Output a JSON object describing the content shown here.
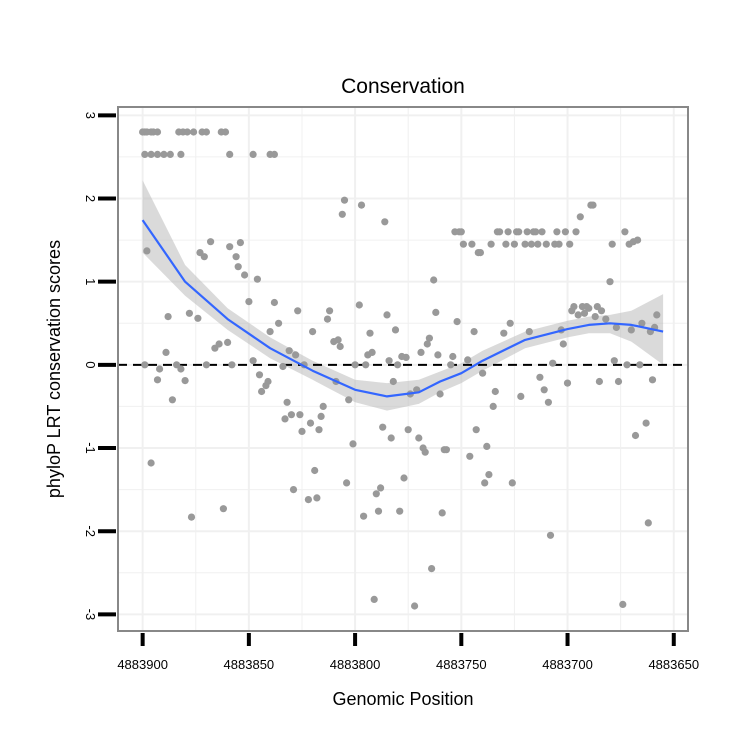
{
  "chart_data": {
    "type": "scatter",
    "title": "Conservation",
    "xlabel": "Genomic Position",
    "ylabel": "phyloP LRT conservation scores",
    "x_reversed": true,
    "xlim": [
      4883911.6,
      4883643.3
    ],
    "ylim": [
      -3.2,
      3.1
    ],
    "x_ticks": [
      4883900,
      4883850,
      4883800,
      4883750,
      4883700,
      4883650
    ],
    "x_tick_labels": [
      "4883900",
      "4883850",
      "4883800",
      "4883750",
      "4883700",
      "4883650"
    ],
    "y_ticks": [
      -3,
      -2,
      -1,
      0,
      1,
      2,
      3
    ],
    "y_tick_labels": [
      "-3",
      "-2",
      "-1",
      "0",
      "1",
      "2",
      "3"
    ],
    "reference_line": {
      "y": 0,
      "style": "dashed"
    },
    "grid": true,
    "colors": {
      "points": "#999999",
      "smooth_line": "#3366ff",
      "ribbon": "#bbbbbb",
      "panel_border": "#888888",
      "grid": "#f0f0f0"
    },
    "points": [
      {
        "x": 4883900,
        "y": 2.8
      },
      {
        "x": 4883899,
        "y": 2.8
      },
      {
        "x": 4883898,
        "y": 2.8
      },
      {
        "x": 4883896,
        "y": 2.8
      },
      {
        "x": 4883895,
        "y": 2.8
      },
      {
        "x": 4883893,
        "y": 2.8
      },
      {
        "x": 4883899,
        "y": 2.53
      },
      {
        "x": 4883896,
        "y": 2.53
      },
      {
        "x": 4883893,
        "y": 2.53
      },
      {
        "x": 4883890,
        "y": 2.53
      },
      {
        "x": 4883887,
        "y": 2.53
      },
      {
        "x": 4883882,
        "y": 2.53
      },
      {
        "x": 4883883,
        "y": 2.8
      },
      {
        "x": 4883881,
        "y": 2.8
      },
      {
        "x": 4883879,
        "y": 2.8
      },
      {
        "x": 4883876,
        "y": 2.8
      },
      {
        "x": 4883872,
        "y": 2.8
      },
      {
        "x": 4883870,
        "y": 2.8
      },
      {
        "x": 4883863,
        "y": 2.8
      },
      {
        "x": 4883861,
        "y": 2.8
      },
      {
        "x": 4883859,
        "y": 2.53
      },
      {
        "x": 4883848,
        "y": 2.53
      },
      {
        "x": 4883840,
        "y": 2.53
      },
      {
        "x": 4883838,
        "y": 2.53
      },
      {
        "x": 4883898,
        "y": 1.37
      },
      {
        "x": 4883899,
        "y": 0.0
      },
      {
        "x": 4883896,
        "y": -1.18
      },
      {
        "x": 4883893,
        "y": -0.18
      },
      {
        "x": 4883892,
        "y": -0.05
      },
      {
        "x": 4883889,
        "y": 0.15
      },
      {
        "x": 4883888,
        "y": 0.58
      },
      {
        "x": 4883886,
        "y": -0.42
      },
      {
        "x": 4883884,
        "y": 0.0
      },
      {
        "x": 4883882,
        "y": -0.05
      },
      {
        "x": 4883880,
        "y": -0.19
      },
      {
        "x": 4883878,
        "y": 0.62
      },
      {
        "x": 4883877,
        "y": -1.83
      },
      {
        "x": 4883874,
        "y": 0.56
      },
      {
        "x": 4883873,
        "y": 1.35
      },
      {
        "x": 4883871,
        "y": 1.3
      },
      {
        "x": 4883870,
        "y": 0.0
      },
      {
        "x": 4883868,
        "y": 1.48
      },
      {
        "x": 4883866,
        "y": 0.2
      },
      {
        "x": 4883864,
        "y": 0.25
      },
      {
        "x": 4883862,
        "y": -1.73
      },
      {
        "x": 4883860,
        "y": 0.27
      },
      {
        "x": 4883859,
        "y": 1.42
      },
      {
        "x": 4883858,
        "y": 0.0
      },
      {
        "x": 4883856,
        "y": 1.3
      },
      {
        "x": 4883855,
        "y": 1.18
      },
      {
        "x": 4883854,
        "y": 1.47
      },
      {
        "x": 4883852,
        "y": 1.08
      },
      {
        "x": 4883850,
        "y": 0.76
      },
      {
        "x": 4883848,
        "y": 0.05
      },
      {
        "x": 4883846,
        "y": 1.03
      },
      {
        "x": 4883845,
        "y": -0.12
      },
      {
        "x": 4883844,
        "y": -0.32
      },
      {
        "x": 4883842,
        "y": -0.25
      },
      {
        "x": 4883841,
        "y": -0.2
      },
      {
        "x": 4883840,
        "y": 0.4
      },
      {
        "x": 4883838,
        "y": 0.75
      },
      {
        "x": 4883836,
        "y": 0.5
      },
      {
        "x": 4883834,
        "y": -0.02
      },
      {
        "x": 4883833,
        "y": -0.65
      },
      {
        "x": 4883832,
        "y": -0.45
      },
      {
        "x": 4883831,
        "y": 0.17
      },
      {
        "x": 4883830,
        "y": -0.6
      },
      {
        "x": 4883829,
        "y": -1.5
      },
      {
        "x": 4883828,
        "y": 0.12
      },
      {
        "x": 4883827,
        "y": 0.65
      },
      {
        "x": 4883826,
        "y": -0.6
      },
      {
        "x": 4883825,
        "y": -0.8
      },
      {
        "x": 4883824,
        "y": 0.0
      },
      {
        "x": 4883822,
        "y": -1.62
      },
      {
        "x": 4883821,
        "y": -0.7
      },
      {
        "x": 4883820,
        "y": 0.4
      },
      {
        "x": 4883819,
        "y": -1.27
      },
      {
        "x": 4883818,
        "y": -1.6
      },
      {
        "x": 4883817,
        "y": -0.78
      },
      {
        "x": 4883816,
        "y": -0.62
      },
      {
        "x": 4883815,
        "y": -0.5
      },
      {
        "x": 4883813,
        "y": 0.55
      },
      {
        "x": 4883812,
        "y": 0.65
      },
      {
        "x": 4883810,
        "y": 0.28
      },
      {
        "x": 4883809,
        "y": -0.2
      },
      {
        "x": 4883808,
        "y": 0.3
      },
      {
        "x": 4883807,
        "y": 0.22
      },
      {
        "x": 4883806,
        "y": 1.81
      },
      {
        "x": 4883805,
        "y": 1.98
      },
      {
        "x": 4883804,
        "y": -1.42
      },
      {
        "x": 4883803,
        "y": -0.42
      },
      {
        "x": 4883801,
        "y": -0.95
      },
      {
        "x": 4883800,
        "y": 0.0
      },
      {
        "x": 4883798,
        "y": 0.72
      },
      {
        "x": 4883797,
        "y": 1.92
      },
      {
        "x": 4883796,
        "y": -1.82
      },
      {
        "x": 4883795,
        "y": 0.0
      },
      {
        "x": 4883794,
        "y": 0.12
      },
      {
        "x": 4883793,
        "y": 0.38
      },
      {
        "x": 4883792,
        "y": 0.15
      },
      {
        "x": 4883791,
        "y": -2.82
      },
      {
        "x": 4883790,
        "y": -1.55
      },
      {
        "x": 4883789,
        "y": -1.76
      },
      {
        "x": 4883788,
        "y": -1.48
      },
      {
        "x": 4883787,
        "y": -0.75
      },
      {
        "x": 4883786,
        "y": 1.72
      },
      {
        "x": 4883785,
        "y": 0.6
      },
      {
        "x": 4883784,
        "y": 0.05
      },
      {
        "x": 4883783,
        "y": -0.88
      },
      {
        "x": 4883782,
        "y": -0.2
      },
      {
        "x": 4883781,
        "y": 0.42
      },
      {
        "x": 4883780,
        "y": 0.0
      },
      {
        "x": 4883779,
        "y": -1.76
      },
      {
        "x": 4883778,
        "y": 0.1
      },
      {
        "x": 4883777,
        "y": -1.36
      },
      {
        "x": 4883776,
        "y": 0.09
      },
      {
        "x": 4883775,
        "y": -0.78
      },
      {
        "x": 4883774,
        "y": -0.35
      },
      {
        "x": 4883772,
        "y": -2.9
      },
      {
        "x": 4883771,
        "y": -0.3
      },
      {
        "x": 4883770,
        "y": -0.88
      },
      {
        "x": 4883769,
        "y": 0.15
      },
      {
        "x": 4883768,
        "y": -1.0
      },
      {
        "x": 4883767,
        "y": -1.05
      },
      {
        "x": 4883766,
        "y": 0.25
      },
      {
        "x": 4883765,
        "y": 0.32
      },
      {
        "x": 4883764,
        "y": -2.45
      },
      {
        "x": 4883763,
        "y": 1.02
      },
      {
        "x": 4883762,
        "y": 0.63
      },
      {
        "x": 4883761,
        "y": 0.12
      },
      {
        "x": 4883760,
        "y": -0.35
      },
      {
        "x": 4883759,
        "y": -1.78
      },
      {
        "x": 4883758,
        "y": -1.02
      },
      {
        "x": 4883757,
        "y": -1.02
      },
      {
        "x": 4883755,
        "y": 0.0
      },
      {
        "x": 4883754,
        "y": 0.1
      },
      {
        "x": 4883753,
        "y": 1.6
      },
      {
        "x": 4883752,
        "y": 0.52
      },
      {
        "x": 4883751,
        "y": 1.6
      },
      {
        "x": 4883750,
        "y": 1.6
      },
      {
        "x": 4883749,
        "y": 1.45
      },
      {
        "x": 4883747,
        "y": 0.06
      },
      {
        "x": 4883746,
        "y": -1.1
      },
      {
        "x": 4883745,
        "y": 1.45
      },
      {
        "x": 4883744,
        "y": 0.4
      },
      {
        "x": 4883743,
        "y": -0.78
      },
      {
        "x": 4883742,
        "y": 1.35
      },
      {
        "x": 4883741,
        "y": 1.35
      },
      {
        "x": 4883740,
        "y": -0.1
      },
      {
        "x": 4883739,
        "y": -1.42
      },
      {
        "x": 4883738,
        "y": -0.98
      },
      {
        "x": 4883737,
        "y": -1.32
      },
      {
        "x": 4883736,
        "y": 1.45
      },
      {
        "x": 4883735,
        "y": -0.5
      },
      {
        "x": 4883734,
        "y": -0.32
      },
      {
        "x": 4883733,
        "y": 1.6
      },
      {
        "x": 4883732,
        "y": 1.6
      },
      {
        "x": 4883730,
        "y": 0.38
      },
      {
        "x": 4883729,
        "y": 1.45
      },
      {
        "x": 4883728,
        "y": 1.6
      },
      {
        "x": 4883727,
        "y": 0.5
      },
      {
        "x": 4883726,
        "y": -1.42
      },
      {
        "x": 4883725,
        "y": 1.45
      },
      {
        "x": 4883724,
        "y": 1.6
      },
      {
        "x": 4883723,
        "y": 1.6
      },
      {
        "x": 4883722,
        "y": -0.38
      },
      {
        "x": 4883720,
        "y": 1.45
      },
      {
        "x": 4883719,
        "y": 1.6
      },
      {
        "x": 4883718,
        "y": 0.4
      },
      {
        "x": 4883717,
        "y": 1.45
      },
      {
        "x": 4883716,
        "y": 1.6
      },
      {
        "x": 4883715,
        "y": 1.6
      },
      {
        "x": 4883714,
        "y": 1.45
      },
      {
        "x": 4883713,
        "y": -0.15
      },
      {
        "x": 4883712,
        "y": 1.6
      },
      {
        "x": 4883711,
        "y": -0.3
      },
      {
        "x": 4883710,
        "y": 1.45
      },
      {
        "x": 4883709,
        "y": -0.45
      },
      {
        "x": 4883708,
        "y": -2.05
      },
      {
        "x": 4883707,
        "y": 0.02
      },
      {
        "x": 4883706,
        "y": 1.45
      },
      {
        "x": 4883705,
        "y": 1.6
      },
      {
        "x": 4883704,
        "y": 1.45
      },
      {
        "x": 4883703,
        "y": 0.42
      },
      {
        "x": 4883702,
        "y": 0.25
      },
      {
        "x": 4883701,
        "y": 1.6
      },
      {
        "x": 4883700,
        "y": -0.22
      },
      {
        "x": 4883699,
        "y": 1.45
      },
      {
        "x": 4883698,
        "y": 0.65
      },
      {
        "x": 4883697,
        "y": 0.7
      },
      {
        "x": 4883696,
        "y": 1.6
      },
      {
        "x": 4883695,
        "y": 0.6
      },
      {
        "x": 4883694,
        "y": 1.78
      },
      {
        "x": 4883693,
        "y": 0.7
      },
      {
        "x": 4883692,
        "y": 0.62
      },
      {
        "x": 4883691,
        "y": 0.7
      },
      {
        "x": 4883690,
        "y": 0.68
      },
      {
        "x": 4883689,
        "y": 1.92
      },
      {
        "x": 4883688,
        "y": 1.92
      },
      {
        "x": 4883687,
        "y": 0.58
      },
      {
        "x": 4883686,
        "y": 0.7
      },
      {
        "x": 4883685,
        "y": -0.2
      },
      {
        "x": 4883684,
        "y": 0.65
      },
      {
        "x": 4883682,
        "y": 0.55
      },
      {
        "x": 4883680,
        "y": 1.0
      },
      {
        "x": 4883679,
        "y": 1.45
      },
      {
        "x": 4883678,
        "y": 0.05
      },
      {
        "x": 4883677,
        "y": 0.45
      },
      {
        "x": 4883676,
        "y": -0.2
      },
      {
        "x": 4883674,
        "y": -2.88
      },
      {
        "x": 4883673,
        "y": 1.6
      },
      {
        "x": 4883672,
        "y": 0.0
      },
      {
        "x": 4883671,
        "y": 1.45
      },
      {
        "x": 4883670,
        "y": 0.42
      },
      {
        "x": 4883669,
        "y": 1.48
      },
      {
        "x": 4883668,
        "y": -0.85
      },
      {
        "x": 4883667,
        "y": 1.5
      },
      {
        "x": 4883666,
        "y": 0.0
      },
      {
        "x": 4883665,
        "y": 0.5
      },
      {
        "x": 4883663,
        "y": -0.7
      },
      {
        "x": 4883662,
        "y": -1.9
      },
      {
        "x": 4883661,
        "y": 0.4
      },
      {
        "x": 4883660,
        "y": -0.18
      },
      {
        "x": 4883659,
        "y": 0.45
      },
      {
        "x": 4883658,
        "y": 0.6
      }
    ],
    "smooth": {
      "x": [
        4883900,
        4883880,
        4883860,
        4883840,
        4883820,
        4883800,
        4883785,
        4883770,
        4883760,
        4883750,
        4883740,
        4883720,
        4883700,
        4883690,
        4883680,
        4883670,
        4883655
      ],
      "y": [
        1.74,
        1.0,
        0.55,
        0.2,
        -0.07,
        -0.3,
        -0.38,
        -0.33,
        -0.2,
        -0.1,
        0.05,
        0.3,
        0.43,
        0.48,
        0.5,
        0.48,
        0.4
      ],
      "lower": [
        1.35,
        0.83,
        0.42,
        0.08,
        -0.18,
        -0.45,
        -0.55,
        -0.47,
        -0.33,
        -0.22,
        -0.07,
        0.2,
        0.33,
        0.38,
        0.38,
        0.28,
        0.0
      ],
      "upper": [
        2.22,
        1.2,
        0.68,
        0.33,
        0.05,
        -0.18,
        -0.22,
        -0.18,
        -0.08,
        0.02,
        0.17,
        0.4,
        0.53,
        0.58,
        0.6,
        0.65,
        0.85
      ]
    }
  }
}
